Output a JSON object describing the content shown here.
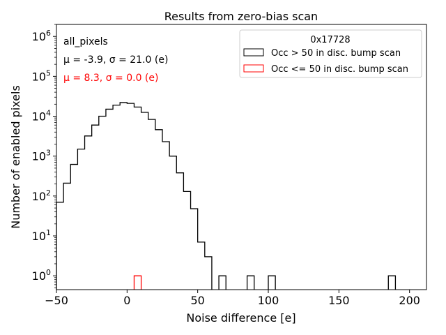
{
  "chart_data": {
    "type": "histogram",
    "title": "Results from zero-bias scan",
    "xlabel": "Noise difference [e]",
    "ylabel": "Number of enabled pixels",
    "xlim": [
      -50,
      212
    ],
    "ylim": [
      0.45,
      2000000
    ],
    "yscale": "log",
    "x_ticks": [
      -50,
      0,
      50,
      100,
      150,
      200
    ],
    "x_tick_labels": [
      "−50",
      "0",
      "50",
      "100",
      "150",
      "200"
    ],
    "y_ticks": [
      1,
      10,
      100,
      1000,
      10000,
      100000,
      1000000
    ],
    "y_tick_labels": [
      {
        "base": "10",
        "exp": "0"
      },
      {
        "base": "10",
        "exp": "1"
      },
      {
        "base": "10",
        "exp": "2"
      },
      {
        "base": "10",
        "exp": "3"
      },
      {
        "base": "10",
        "exp": "4"
      },
      {
        "base": "10",
        "exp": "5"
      },
      {
        "base": "10",
        "exp": "6"
      }
    ],
    "grid": false,
    "legend_placement": "top-right",
    "legend_title": "0x17728",
    "annotations": {
      "dataset": "all_pixels",
      "stats1": "μ = -3.9, σ = 21.0 (e)",
      "stats2": "μ = 8.3, σ = 0.0 (e)"
    },
    "bin_width": 5,
    "series": [
      {
        "name": "Occ > 50 in disc. bump scan",
        "color": "#000000",
        "bins": [
          {
            "x0": -50,
            "value": 70
          },
          {
            "x0": -45,
            "value": 210
          },
          {
            "x0": -40,
            "value": 620
          },
          {
            "x0": -35,
            "value": 1500
          },
          {
            "x0": -30,
            "value": 3200
          },
          {
            "x0": -25,
            "value": 6000
          },
          {
            "x0": -20,
            "value": 10000
          },
          {
            "x0": -15,
            "value": 15000
          },
          {
            "x0": -10,
            "value": 19000
          },
          {
            "x0": -5,
            "value": 22000
          },
          {
            "x0": 0,
            "value": 21000
          },
          {
            "x0": 5,
            "value": 17000
          },
          {
            "x0": 10,
            "value": 12500
          },
          {
            "x0": 15,
            "value": 8300
          },
          {
            "x0": 20,
            "value": 4600
          },
          {
            "x0": 25,
            "value": 2300
          },
          {
            "x0": 30,
            "value": 1000
          },
          {
            "x0": 35,
            "value": 380
          },
          {
            "x0": 40,
            "value": 130
          },
          {
            "x0": 45,
            "value": 48
          },
          {
            "x0": 50,
            "value": 7
          },
          {
            "x0": 55,
            "value": 3
          },
          {
            "x0": 65,
            "value": 1
          },
          {
            "x0": 85,
            "value": 1
          },
          {
            "x0": 100,
            "value": 1
          },
          {
            "x0": 185,
            "value": 1
          }
        ]
      },
      {
        "name": "Occ <= 50 in disc. bump scan",
        "color": "#ff0000",
        "bins": [
          {
            "x0": 5,
            "value": 1
          }
        ]
      }
    ]
  }
}
